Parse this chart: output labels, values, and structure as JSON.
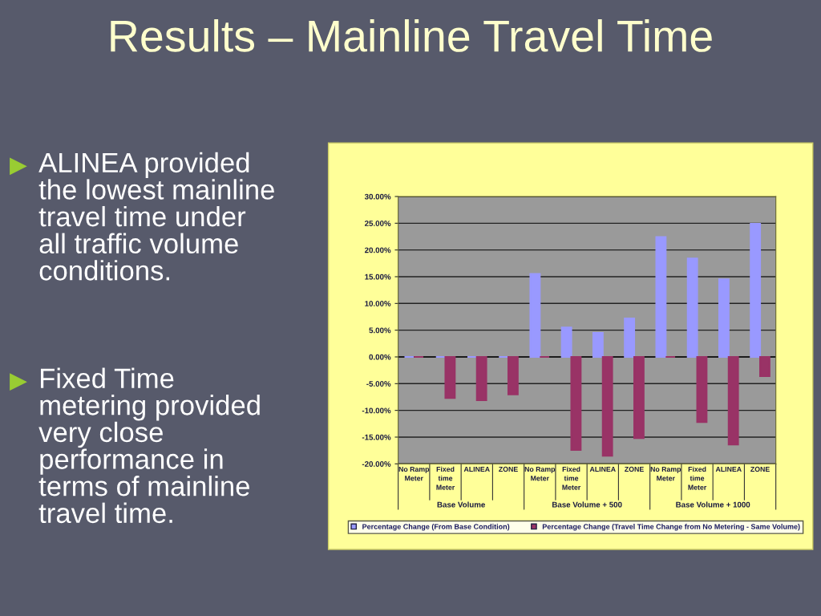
{
  "chart_data": {
    "type": "bar",
    "title": "Results – Mainline Travel Time",
    "categories": [
      "No Ramp\nMeter",
      "Fixed\ntime\nMeter",
      "ALINEA",
      "ZONE",
      "No Ramp\nMeter",
      "Fixed\ntime\nMeter",
      "ALINEA",
      "ZONE",
      "No Ramp\nMeter",
      "Fixed\ntime\nMeter",
      "ALINEA",
      "ZONE"
    ],
    "series": [
      {
        "name": "Percentage Change (From Base Condition)",
        "color": "#9999ff",
        "values": [
          0,
          0,
          0,
          0,
          15.5,
          5.5,
          4.5,
          7.2,
          22.4,
          18.4,
          14.5,
          24.9
        ]
      },
      {
        "name": "Percentage Change (Travel Time Change from No Metering - Same Volume)",
        "color": "#993366",
        "values": [
          0,
          -7.7,
          -8.1,
          -7.0,
          0,
          -17.4,
          -18.5,
          -15.2,
          0,
          -12.2,
          -16.4,
          -3.6
        ]
      }
    ],
    "ylim": [
      -20,
      30
    ],
    "yticks": [
      {
        "value": -20,
        "label": "-20.00%"
      },
      {
        "value": -15,
        "label": "-15.00%"
      },
      {
        "value": -10,
        "label": "-10.00%"
      },
      {
        "value": -5,
        "label": "-5.00%"
      },
      {
        "value": 0,
        "label": "0.00%"
      },
      {
        "value": 5,
        "label": "5.00%"
      },
      {
        "value": 10,
        "label": "10.00%"
      },
      {
        "value": 15,
        "label": "15.00%"
      },
      {
        "value": 20,
        "label": "20.00%"
      },
      {
        "value": 25,
        "label": "25.00%"
      },
      {
        "value": 30,
        "label": "30.00%"
      }
    ],
    "grid": "y",
    "legend": "bottom",
    "annotations": [
      "ALINEA provided\nthe lowest mainline\ntravel time under\nall traffic volume\nconditions.",
      "Fixed Time\nmetering provided\nvery close\nperformance in\nterms of mainline\ntravel time.",
      "Base Volume",
      "Base Volume + 500",
      "Base Volume + 1000"
    ]
  }
}
